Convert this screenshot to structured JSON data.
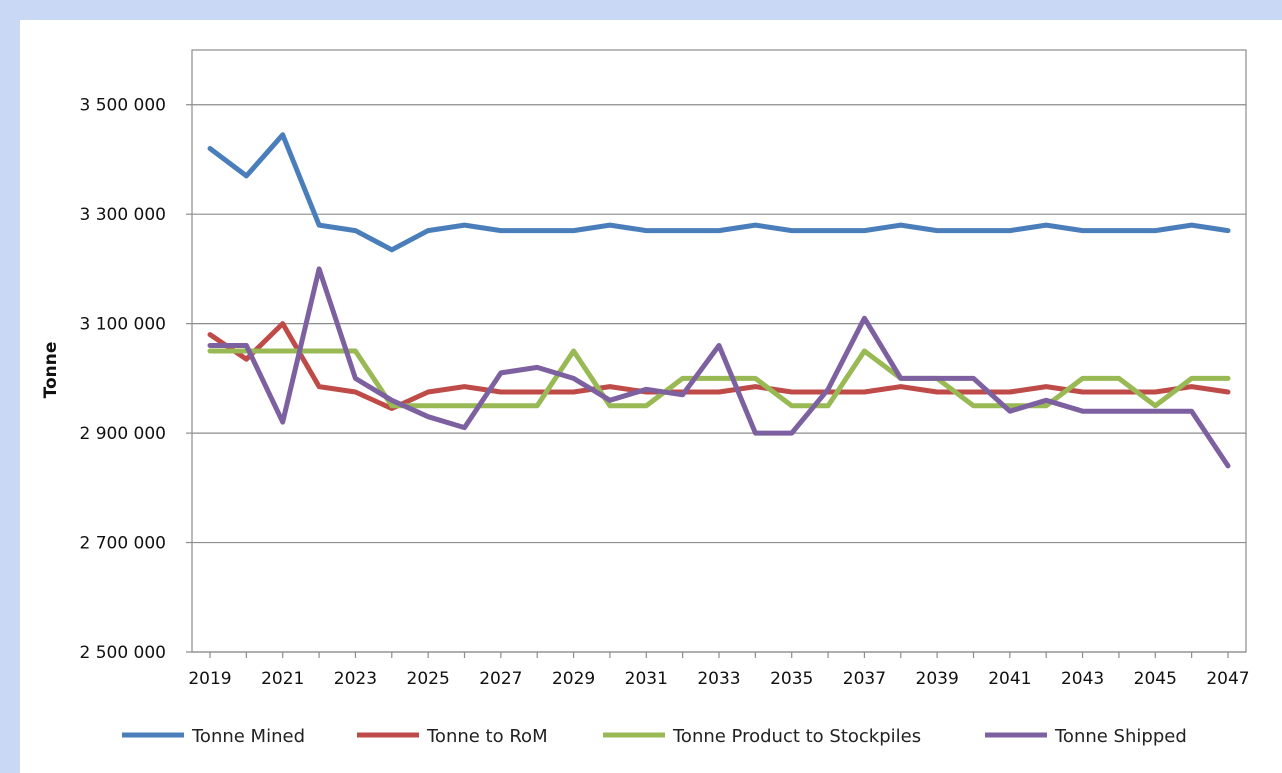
{
  "chart_data": {
    "type": "line",
    "title": "",
    "xlabel": "",
    "ylabel": "Tonne",
    "ylim": [
      2500000,
      3600000
    ],
    "yticks": [
      2500000,
      2700000,
      2900000,
      3100000,
      3300000,
      3500000
    ],
    "ytick_labels": [
      "2 500 000",
      "2 700 000",
      "2 900 000",
      "3 100 000",
      "3 300 000",
      "3 500 000"
    ],
    "x": [
      2019,
      2020,
      2021,
      2022,
      2023,
      2024,
      2025,
      2026,
      2027,
      2028,
      2029,
      2030,
      2031,
      2032,
      2033,
      2034,
      2035,
      2036,
      2037,
      2038,
      2039,
      2040,
      2041,
      2042,
      2043,
      2044,
      2045,
      2046,
      2047
    ],
    "xtick_labels": [
      "2019",
      "2021",
      "2023",
      "2025",
      "2027",
      "2029",
      "2031",
      "2033",
      "2035",
      "2037",
      "2039",
      "2041",
      "2043",
      "2045",
      "2047"
    ],
    "grid": "horizontal",
    "legend_position": "bottom",
    "series": [
      {
        "name": "Tonne Mined",
        "color": "#4a7ebb",
        "values": [
          3420000,
          3370000,
          3445000,
          3280000,
          3270000,
          3235000,
          3270000,
          3280000,
          3270000,
          3270000,
          3270000,
          3280000,
          3270000,
          3270000,
          3270000,
          3280000,
          3270000,
          3270000,
          3270000,
          3280000,
          3270000,
          3270000,
          3270000,
          3280000,
          3270000,
          3270000,
          3270000,
          3280000,
          3270000
        ]
      },
      {
        "name": "Tonne to RoM",
        "color": "#be4b48",
        "values": [
          3080000,
          3035000,
          3100000,
          2985000,
          2975000,
          2945000,
          2975000,
          2985000,
          2975000,
          2975000,
          2975000,
          2985000,
          2975000,
          2975000,
          2975000,
          2985000,
          2975000,
          2975000,
          2975000,
          2985000,
          2975000,
          2975000,
          2975000,
          2985000,
          2975000,
          2975000,
          2975000,
          2985000,
          2975000
        ]
      },
      {
        "name": "Tonne Product to Stockpiles",
        "color": "#98b954",
        "values": [
          3050000,
          3050000,
          3050000,
          3050000,
          3050000,
          2950000,
          2950000,
          2950000,
          2950000,
          2950000,
          3050000,
          2950000,
          2950000,
          3000000,
          3000000,
          3000000,
          2950000,
          2950000,
          3050000,
          3000000,
          3000000,
          2950000,
          2950000,
          2950000,
          3000000,
          3000000,
          2950000,
          3000000,
          3000000
        ]
      },
      {
        "name": "Tonne Shipped",
        "color": "#7d60a0",
        "values": [
          3060000,
          3060000,
          2920000,
          3200000,
          3000000,
          2960000,
          2930000,
          2910000,
          3010000,
          3020000,
          3000000,
          2960000,
          2980000,
          2970000,
          3060000,
          2900000,
          2900000,
          2980000,
          3110000,
          3000000,
          3000000,
          3000000,
          2940000,
          2960000,
          2940000,
          2940000,
          2940000,
          2940000,
          2840000
        ]
      }
    ]
  }
}
